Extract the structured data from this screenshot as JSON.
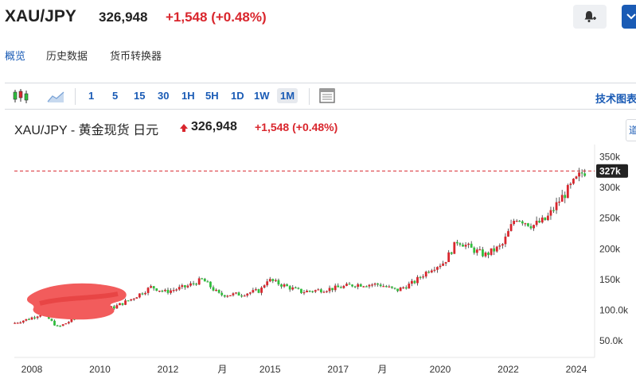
{
  "header": {
    "symbol": "XAU/JPY",
    "price": "326,948",
    "change": "+1,548 (+0.48%)"
  },
  "subnav": {
    "overview": "概览",
    "history": "历史数据",
    "converter": "货币转换器"
  },
  "toolbar": {
    "timeframes": [
      "1",
      "5",
      "15",
      "30",
      "1H",
      "5H",
      "1D",
      "1W",
      "1M"
    ],
    "active_timeframe": "1M",
    "tech_chart": "技术图表"
  },
  "chart_title": {
    "name": "XAU/JPY - 黄金现货 日元",
    "price": "326,948",
    "change": "+1,548 (+0.48%)"
  },
  "side_tab_label": "道",
  "colors": {
    "accent": "#1a5bb5",
    "up": "#d9262d",
    "down": "#2fbf3c",
    "price_line": "#d9262d"
  },
  "chart_data": {
    "type": "candlestick",
    "current_label": "327k",
    "current_value": 326948,
    "ylim": [
      20000,
      360000
    ],
    "yticks": [
      {
        "label": "350k",
        "value": 350000
      },
      {
        "label": "300k",
        "value": 300000
      },
      {
        "label": "250k",
        "value": 250000
      },
      {
        "label": "200k",
        "value": 200000
      },
      {
        "label": "150k",
        "value": 150000
      },
      {
        "label": "100.0k",
        "value": 100000
      },
      {
        "label": "50.0k",
        "value": 50000
      }
    ],
    "xticks": [
      {
        "label": "2008",
        "value": 2008.0
      },
      {
        "label": "2010",
        "value": 2010.0
      },
      {
        "label": "2012",
        "value": 2012.0
      },
      {
        "label": "月",
        "value": 2013.6
      },
      {
        "label": "2015",
        "value": 2015.0
      },
      {
        "label": "2017",
        "value": 2017.0
      },
      {
        "label": "月",
        "value": 2018.3
      },
      {
        "label": "2020",
        "value": 2020.0
      },
      {
        "label": "2022",
        "value": 2022.0
      },
      {
        "label": "2024",
        "value": 2024.0
      }
    ],
    "xlim": [
      2007.45,
      2024.35
    ],
    "anchors": [
      [
        2007.5,
        78000
      ],
      [
        2008.0,
        86000
      ],
      [
        2008.4,
        95000
      ],
      [
        2008.85,
        72000
      ],
      [
        2009.3,
        85000
      ],
      [
        2009.9,
        97000
      ],
      [
        2010.5,
        105000
      ],
      [
        2011.0,
        118000
      ],
      [
        2011.6,
        138000
      ],
      [
        2012.0,
        130000
      ],
      [
        2012.6,
        138000
      ],
      [
        2013.1,
        150000
      ],
      [
        2013.6,
        125000
      ],
      [
        2014.2,
        126000
      ],
      [
        2014.8,
        132000
      ],
      [
        2015.0,
        150000
      ],
      [
        2015.5,
        140000
      ],
      [
        2016.0,
        130000
      ],
      [
        2016.4,
        132000
      ],
      [
        2017.0,
        136000
      ],
      [
        2017.6,
        142000
      ],
      [
        2018.3,
        142000
      ],
      [
        2018.8,
        132000
      ],
      [
        2019.3,
        145000
      ],
      [
        2019.8,
        168000
      ],
      [
        2020.2,
        178000
      ],
      [
        2020.6,
        214000
      ],
      [
        2021.0,
        200000
      ],
      [
        2021.4,
        190000
      ],
      [
        2021.9,
        205000
      ],
      [
        2022.3,
        252000
      ],
      [
        2022.8,
        238000
      ],
      [
        2023.2,
        248000
      ],
      [
        2023.6,
        280000
      ],
      [
        2023.9,
        300000
      ],
      [
        2024.3,
        326948
      ]
    ]
  }
}
